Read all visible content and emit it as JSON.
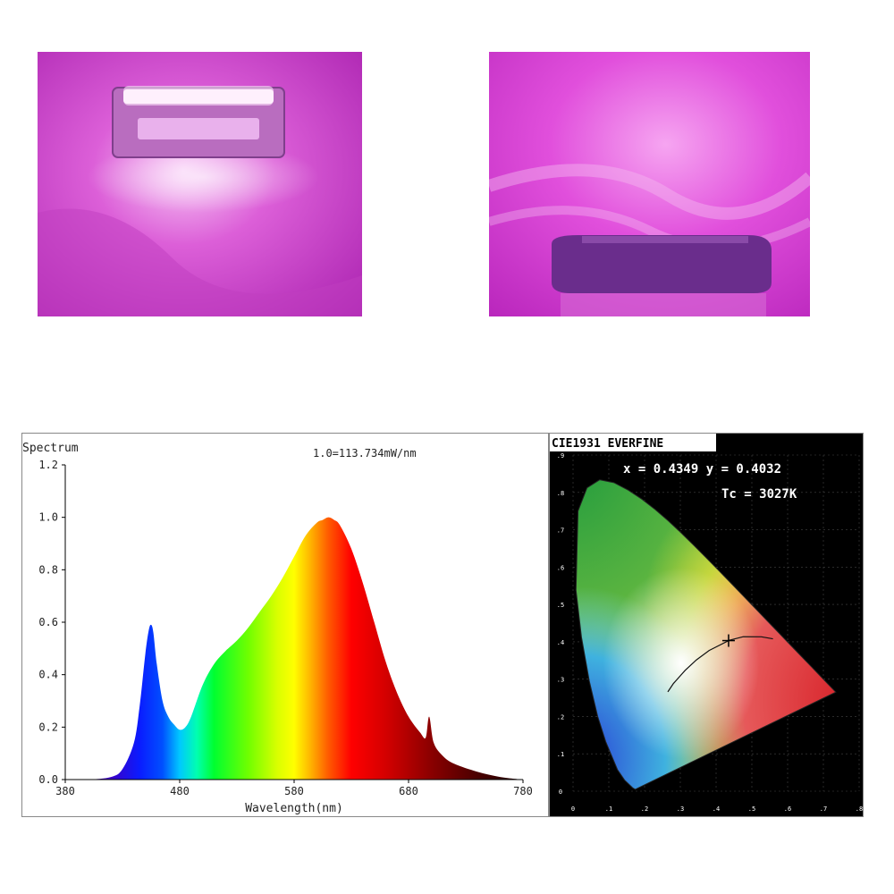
{
  "chart_data": [
    {
      "type": "area",
      "title": "Spectrum",
      "subtitle": "1.0=113.734mW/nm",
      "xlabel": "Wavelength(nm)",
      "ylabel": "",
      "xlim": [
        380,
        780
      ],
      "ylim": [
        0,
        1.2
      ],
      "x_ticks": [
        "380",
        "480",
        "580",
        "680",
        "780"
      ],
      "y_ticks": [
        "0.0",
        "0.2",
        "0.4",
        "0.6",
        "0.8",
        "1.0",
        "1.2"
      ],
      "grid": false,
      "fill": "visible-spectrum gradient",
      "x": [
        380,
        400,
        420,
        430,
        440,
        445,
        450,
        453,
        455,
        457,
        460,
        465,
        470,
        475,
        480,
        485,
        490,
        500,
        510,
        520,
        530,
        540,
        550,
        560,
        570,
        580,
        590,
        600,
        605,
        610,
        615,
        620,
        630,
        640,
        650,
        660,
        670,
        680,
        690,
        695,
        698,
        702,
        710,
        720,
        740,
        760,
        780
      ],
      "y": [
        0.0,
        0.0,
        0.01,
        0.04,
        0.14,
        0.28,
        0.48,
        0.57,
        0.59,
        0.56,
        0.44,
        0.3,
        0.24,
        0.21,
        0.19,
        0.2,
        0.24,
        0.36,
        0.44,
        0.49,
        0.53,
        0.58,
        0.64,
        0.7,
        0.77,
        0.85,
        0.93,
        0.98,
        0.99,
        1.0,
        0.99,
        0.97,
        0.88,
        0.75,
        0.6,
        0.45,
        0.33,
        0.24,
        0.18,
        0.16,
        0.24,
        0.14,
        0.09,
        0.06,
        0.03,
        0.01,
        0.0
      ]
    },
    {
      "type": "scatter",
      "title": "CIE1931 EVERFINE",
      "annotations": [
        "x = 0.4349 y = 0.4032",
        "Tc = 3027K"
      ],
      "xlim": [
        0,
        0.8
      ],
      "ylim": [
        0,
        0.9
      ],
      "x_ticks": [
        "0",
        ".1",
        ".2",
        ".3",
        ".4",
        ".5",
        ".6",
        ".7",
        ".8"
      ],
      "y_ticks": [
        "0",
        ".1",
        ".2",
        ".3",
        ".4",
        ".5",
        ".6",
        ".7",
        ".8",
        ".9"
      ],
      "point": {
        "x": 0.4349,
        "y": 0.4032
      },
      "background": "#000000"
    }
  ]
}
